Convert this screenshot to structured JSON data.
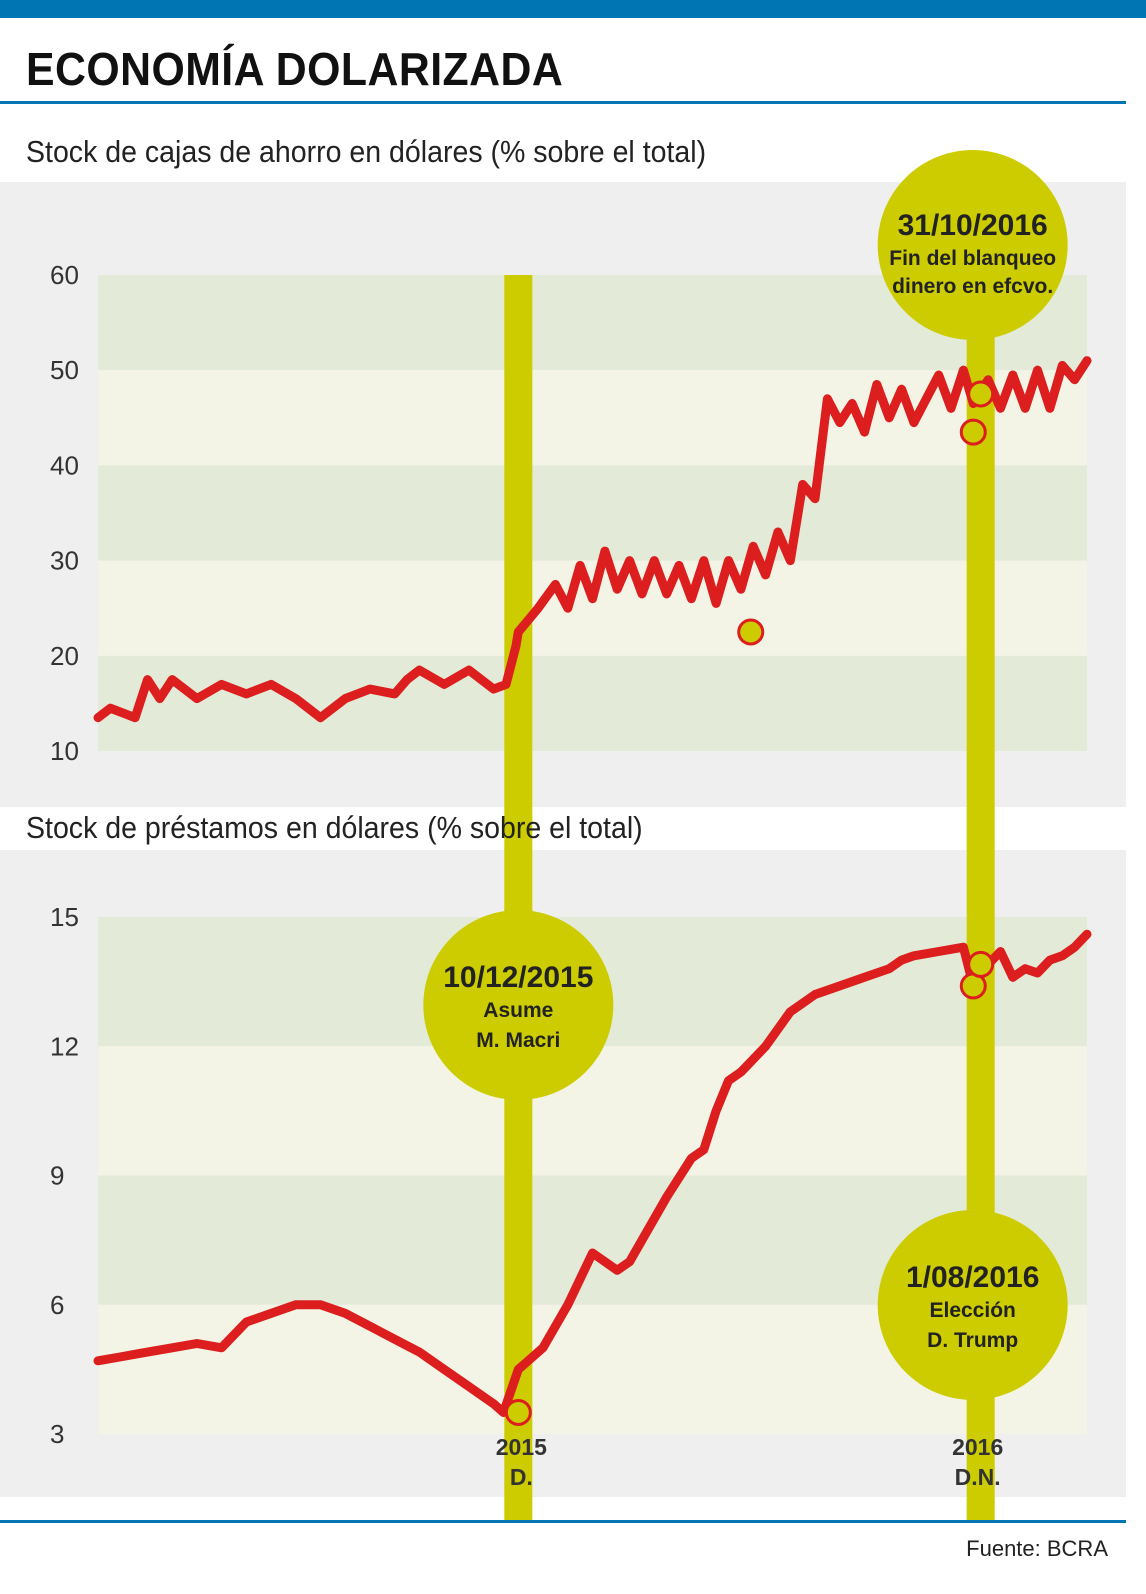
{
  "header": {
    "title": "ECONOMÍA DOLARIZADA"
  },
  "colors": {
    "accent_blue": "#0075b4",
    "line_red": "#dc1e1e",
    "highlight_yellow": "#cccc00",
    "band_green": "#e3ead7",
    "band_cream": "#f4f4e6",
    "panel_gray": "#efefef"
  },
  "chart_data": [
    {
      "type": "line",
      "title": "Stock de cajas de ahorro en dólares (% sobre el total)",
      "ylabel": "% sobre el total",
      "ylim": [
        10,
        60
      ],
      "yticks": [
        "60",
        "50",
        "40",
        "30",
        "20",
        "10"
      ],
      "x_range": [
        2013.3,
        2017.3
      ],
      "series": [
        {
          "name": "Cajas de ahorro en dólares",
          "x": [
            2013.3,
            2013.35,
            2013.45,
            2013.5,
            2013.55,
            2013.6,
            2013.7,
            2013.8,
            2013.9,
            2014.0,
            2014.1,
            2014.2,
            2014.3,
            2014.4,
            2014.5,
            2014.55,
            2014.6,
            2014.7,
            2014.8,
            2014.9,
            2014.95,
            2014.99,
            2015.0,
            2015.08,
            2015.15,
            2015.2,
            2015.25,
            2015.3,
            2015.35,
            2015.4,
            2015.45,
            2015.5,
            2015.55,
            2015.6,
            2015.65,
            2015.7,
            2015.75,
            2015.8,
            2015.85,
            2015.9,
            2015.95,
            2016.0,
            2016.05,
            2016.1,
            2016.15,
            2016.2,
            2016.25,
            2016.3,
            2016.35,
            2016.4,
            2016.45,
            2016.5,
            2016.55,
            2016.6,
            2016.7,
            2016.75,
            2016.8,
            2016.84,
            2016.9,
            2016.95,
            2017.0,
            2017.05,
            2017.1,
            2017.15,
            2017.2,
            2017.25,
            2017.3
          ],
          "values": [
            13.5,
            14.5,
            13.5,
            17.5,
            15.5,
            17.5,
            15.5,
            17.0,
            16.0,
            17.0,
            15.5,
            13.5,
            15.5,
            16.5,
            16.0,
            17.5,
            18.5,
            17.0,
            18.5,
            16.5,
            17.0,
            21.0,
            22.5,
            25.0,
            27.5,
            25.0,
            29.5,
            26.0,
            31.0,
            27.0,
            30.0,
            26.5,
            30.0,
            26.5,
            29.5,
            26.0,
            30.0,
            25.5,
            30.0,
            27.0,
            31.5,
            28.5,
            33.0,
            30.0,
            38.0,
            36.5,
            47.0,
            44.5,
            46.5,
            43.5,
            48.5,
            45.0,
            48.0,
            44.5,
            49.5,
            46.0,
            50.0,
            46.5,
            49.0,
            46.0,
            49.5,
            46.0,
            50.0,
            46.0,
            50.5,
            49.0,
            51.0
          ]
        }
      ],
      "markers": [
        {
          "x": 2015.94,
          "y": 22.5
        },
        {
          "x": 2016.84,
          "y": 43.5
        },
        {
          "x": 2016.87,
          "y": 47.5
        }
      ]
    },
    {
      "type": "line",
      "title": "Stock de préstamos en dólares (% sobre el total)",
      "ylabel": "% sobre el total",
      "ylim": [
        3,
        15
      ],
      "yticks": [
        "15",
        "12",
        "9",
        "6",
        "3"
      ],
      "x_range": [
        2013.3,
        2017.3
      ],
      "x_tick_labels": [
        {
          "label": "2015",
          "sub": "D."
        },
        {
          "label": "2016",
          "sub": "D.N."
        }
      ],
      "series": [
        {
          "name": "Préstamos en dólares",
          "x": [
            2013.3,
            2013.4,
            2013.5,
            2013.6,
            2013.7,
            2013.8,
            2013.9,
            2014.0,
            2014.1,
            2014.2,
            2014.3,
            2014.4,
            2014.5,
            2014.6,
            2014.7,
            2014.8,
            2014.9,
            2014.94,
            2015.0,
            2015.02,
            2015.1,
            2015.2,
            2015.3,
            2015.4,
            2015.45,
            2015.5,
            2015.6,
            2015.7,
            2015.75,
            2015.8,
            2015.85,
            2015.9,
            2016.0,
            2016.1,
            2016.15,
            2016.2,
            2016.3,
            2016.4,
            2016.5,
            2016.55,
            2016.6,
            2016.7,
            2016.8,
            2016.84,
            2016.9,
            2016.95,
            2017.0,
            2017.05,
            2017.1,
            2017.15,
            2017.2,
            2017.25,
            2017.3
          ],
          "values": [
            4.7,
            4.8,
            4.9,
            5.0,
            5.1,
            5.0,
            5.6,
            5.8,
            6.0,
            6.0,
            5.8,
            5.5,
            5.2,
            4.9,
            4.5,
            4.1,
            3.7,
            3.5,
            4.5,
            4.6,
            5.0,
            6.0,
            7.2,
            6.8,
            7.0,
            7.5,
            8.5,
            9.4,
            9.6,
            10.5,
            11.2,
            11.4,
            12.0,
            12.8,
            13.0,
            13.2,
            13.4,
            13.6,
            13.8,
            14.0,
            14.1,
            14.2,
            14.3,
            13.4,
            13.9,
            14.2,
            13.6,
            13.8,
            13.7,
            14.0,
            14.1,
            14.3,
            14.6
          ]
        }
      ],
      "markers": [
        {
          "x": 2015.0,
          "y": 3.5
        },
        {
          "x": 2016.84,
          "y": 13.4
        },
        {
          "x": 2016.87,
          "y": 13.9
        }
      ]
    }
  ],
  "annotations": {
    "top_event": {
      "date": "31/10/2016",
      "line1": "Fin del blanqueo",
      "line2": "dinero en efcvo."
    },
    "macri_event": {
      "date": "10/12/2015",
      "line1": "Asume",
      "line2": "M. Macri"
    },
    "trump_event": {
      "date": "1/08/2016",
      "line1": "Elección",
      "line2": "D. Trump"
    }
  },
  "footer": {
    "source": "Fuente: BCRA"
  }
}
